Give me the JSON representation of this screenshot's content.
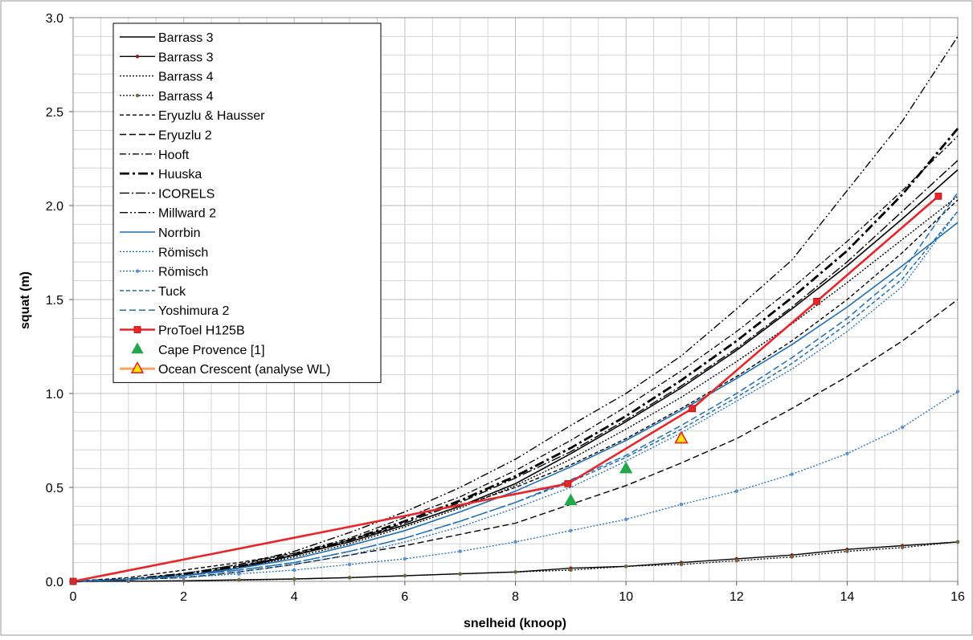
{
  "chart_data": {
    "type": "line",
    "xlabel": "snelheid (knoop)",
    "ylabel": "squat (m)",
    "xlim": [
      0,
      16
    ],
    "ylim": [
      0,
      3.0
    ],
    "x_ticks": [
      "0",
      "2",
      "4",
      "6",
      "8",
      "10",
      "12",
      "14",
      "16"
    ],
    "y_ticks": [
      "0.0",
      "0.5",
      "1.0",
      "1.5",
      "2.0",
      "2.5",
      "3.0"
    ],
    "grid": true,
    "legend_position": "top-left",
    "series": [
      {
        "name": "Barrass 3",
        "color": "#000000",
        "width": 1.6,
        "dash": "",
        "marker": "none",
        "x": [
          0,
          1,
          2,
          3,
          4,
          5,
          6,
          7,
          8,
          9,
          10,
          11,
          12,
          13,
          14,
          15,
          16
        ],
        "y": [
          0,
          0.01,
          0.03,
          0.07,
          0.14,
          0.21,
          0.3,
          0.4,
          0.52,
          0.68,
          0.85,
          1.03,
          1.23,
          1.45,
          1.68,
          1.93,
          2.19
        ]
      },
      {
        "name": "Barrass 3",
        "color": "#000000",
        "width": 1.4,
        "dash": "",
        "marker": "dot",
        "markerColor": "#8b1a1a",
        "x": [
          0,
          1,
          2,
          3,
          4,
          5,
          6,
          7,
          8,
          9,
          10,
          11,
          12,
          13,
          14,
          15,
          16
        ],
        "y": [
          0,
          0.001,
          0.003,
          0.008,
          0.013,
          0.02,
          0.03,
          0.04,
          0.05,
          0.07,
          0.08,
          0.1,
          0.12,
          0.14,
          0.17,
          0.19,
          0.21
        ]
      },
      {
        "name": "Barrass 4",
        "color": "#000000",
        "width": 1.4,
        "dash": "2,2",
        "marker": "none",
        "x": [
          0,
          1,
          2,
          3,
          4,
          5,
          6,
          7,
          8,
          9,
          10,
          11,
          12,
          13,
          14,
          15,
          16
        ],
        "y": [
          0,
          0.01,
          0.03,
          0.07,
          0.13,
          0.2,
          0.29,
          0.39,
          0.51,
          0.65,
          0.81,
          0.98,
          1.17,
          1.37,
          1.59,
          1.82,
          2.05
        ]
      },
      {
        "name": "Barrass 4",
        "color": "#000000",
        "width": 1.3,
        "dash": "2,2",
        "marker": "dot",
        "markerColor": "#6b6b3a",
        "x": [
          0,
          1,
          2,
          3,
          4,
          5,
          6,
          7,
          8,
          9,
          10,
          11,
          12,
          13,
          14,
          15,
          16
        ],
        "y": [
          0,
          0.001,
          0.003,
          0.007,
          0.012,
          0.02,
          0.03,
          0.04,
          0.05,
          0.06,
          0.08,
          0.09,
          0.11,
          0.13,
          0.16,
          0.18,
          0.21
        ]
      },
      {
        "name": "Eryuzlu & Hausser",
        "color": "#000000",
        "width": 1.4,
        "dash": "5,3",
        "marker": "none",
        "x": [
          0,
          1,
          2,
          3,
          4,
          5,
          6,
          7,
          8,
          9,
          10,
          11,
          12,
          13,
          14,
          15,
          16
        ],
        "y": [
          0,
          0.02,
          0.06,
          0.1,
          0.15,
          0.22,
          0.3,
          0.4,
          0.5,
          0.62,
          0.76,
          0.92,
          1.09,
          1.28,
          1.5,
          1.75,
          2.03
        ]
      },
      {
        "name": "Eryuzlu 2",
        "color": "#000000",
        "width": 1.4,
        "dash": "8,4",
        "marker": "none",
        "x": [
          0,
          1,
          2,
          3,
          4,
          5,
          6,
          7,
          8,
          9,
          10,
          11,
          12,
          13,
          14,
          15,
          16
        ],
        "y": [
          0,
          0.01,
          0.02,
          0.05,
          0.09,
          0.14,
          0.19,
          0.25,
          0.31,
          0.41,
          0.51,
          0.63,
          0.76,
          0.92,
          1.09,
          1.28,
          1.5
        ]
      },
      {
        "name": "Hooft",
        "color": "#000000",
        "width": 1.3,
        "dash": "8,3,2,3",
        "marker": "none",
        "x": [
          0,
          1,
          2,
          3,
          4,
          5,
          6,
          7,
          8,
          9,
          10,
          11,
          12,
          13,
          14,
          15,
          16
        ],
        "y": [
          0,
          0.01,
          0.04,
          0.09,
          0.15,
          0.23,
          0.34,
          0.45,
          0.59,
          0.75,
          0.93,
          1.12,
          1.33,
          1.56,
          1.81,
          2.08,
          2.37
        ]
      },
      {
        "name": "Huuska",
        "color": "#000000",
        "width": 2.8,
        "dash": "12,4,3,4",
        "marker": "none",
        "x": [
          0,
          1,
          2,
          3,
          4,
          5,
          6,
          7,
          8,
          9,
          10,
          11,
          12,
          13,
          14,
          15,
          16
        ],
        "y": [
          0,
          0.01,
          0.04,
          0.08,
          0.14,
          0.22,
          0.32,
          0.43,
          0.56,
          0.71,
          0.88,
          1.07,
          1.28,
          1.51,
          1.76,
          2.06,
          2.41
        ]
      },
      {
        "name": "ICORELS",
        "color": "#000000",
        "width": 1.4,
        "dash": "12,3,2,3",
        "marker": "none",
        "x": [
          0,
          1,
          2,
          3,
          4,
          5,
          6,
          7,
          8,
          9,
          10,
          11,
          12,
          13,
          14,
          15,
          16
        ],
        "y": [
          0,
          0.01,
          0.03,
          0.08,
          0.14,
          0.22,
          0.31,
          0.42,
          0.55,
          0.69,
          0.86,
          1.04,
          1.24,
          1.46,
          1.7,
          1.97,
          2.24
        ]
      },
      {
        "name": "Millward 2",
        "color": "#000000",
        "width": 1.4,
        "dash": "10,3,2,3,2,3",
        "marker": "none",
        "x": [
          0,
          1,
          2,
          3,
          4,
          5,
          6,
          7,
          8,
          9,
          10,
          11,
          12,
          13,
          14,
          15,
          16
        ],
        "y": [
          0,
          0.01,
          0.04,
          0.09,
          0.16,
          0.26,
          0.37,
          0.5,
          0.65,
          0.83,
          1.0,
          1.2,
          1.45,
          1.71,
          2.08,
          2.45,
          2.9
        ]
      },
      {
        "name": "Norrbin",
        "color": "#1f6fb5",
        "width": 1.6,
        "dash": "",
        "marker": "none",
        "x": [
          0,
          1,
          2,
          3,
          4,
          5,
          6,
          7,
          8,
          9,
          10,
          11,
          12,
          13,
          14,
          15,
          16
        ],
        "y": [
          0,
          0.01,
          0.03,
          0.07,
          0.12,
          0.19,
          0.27,
          0.37,
          0.48,
          0.61,
          0.75,
          0.91,
          1.08,
          1.26,
          1.46,
          1.68,
          1.91
        ]
      },
      {
        "name": "Römisch",
        "color": "#1f6fb5",
        "width": 1.3,
        "dash": "2,2",
        "marker": "none",
        "x": [
          0,
          1,
          2,
          3,
          4,
          5,
          6,
          7,
          8,
          9,
          10,
          11,
          12,
          13,
          14,
          15,
          16
        ],
        "y": [
          0,
          0.01,
          0.02,
          0.05,
          0.09,
          0.14,
          0.21,
          0.29,
          0.39,
          0.5,
          0.64,
          0.79,
          0.96,
          1.13,
          1.33,
          1.57,
          1.97
        ]
      },
      {
        "name": "Römisch",
        "color": "#1f6fb5",
        "width": 1.3,
        "dash": "2,2",
        "marker": "dot",
        "markerColor": "#5a8fd0",
        "x": [
          0,
          1,
          2,
          3,
          4,
          5,
          6,
          7,
          8,
          9,
          10,
          11,
          12,
          13,
          14,
          15,
          16
        ],
        "y": [
          0,
          0.01,
          0.02,
          0.04,
          0.06,
          0.09,
          0.12,
          0.16,
          0.21,
          0.27,
          0.33,
          0.41,
          0.48,
          0.57,
          0.68,
          0.82,
          1.01
        ]
      },
      {
        "name": "Tuck",
        "color": "#1f6fb5",
        "width": 1.5,
        "dash": "5,3",
        "marker": "none",
        "x": [
          0,
          1,
          2,
          3,
          4,
          5,
          6,
          7,
          8,
          9,
          10,
          11,
          12,
          13,
          14,
          15,
          16
        ],
        "y": [
          0,
          0.01,
          0.03,
          0.06,
          0.1,
          0.16,
          0.23,
          0.32,
          0.42,
          0.53,
          0.66,
          0.81,
          0.98,
          1.16,
          1.37,
          1.61,
          1.97
        ]
      },
      {
        "name": "Yoshimura 2",
        "color": "#1f6fb5",
        "width": 1.5,
        "dash": "8,4",
        "marker": "none",
        "x": [
          0,
          1,
          2,
          3,
          4,
          5,
          6,
          7,
          8,
          9,
          10,
          11,
          12,
          13,
          14,
          15,
          16
        ],
        "y": [
          0,
          0.01,
          0.03,
          0.06,
          0.1,
          0.16,
          0.23,
          0.32,
          0.42,
          0.54,
          0.67,
          0.83,
          1.0,
          1.19,
          1.4,
          1.65,
          2.07
        ]
      },
      {
        "name": "ProToel H125B",
        "color": "#e8262a",
        "width": 2.6,
        "dash": "",
        "marker": "square",
        "markerColor": "#e8262a",
        "x": [
          0,
          8.95,
          11.2,
          13.45,
          15.65
        ],
        "y": [
          0,
          0.52,
          0.92,
          1.49,
          2.05
        ]
      }
    ],
    "scatter": [
      {
        "name": "Cape Provence [1]",
        "color": "#22a84a",
        "stroke": "#22a84a",
        "marker": "triangle",
        "x": [
          9,
          10
        ],
        "y": [
          0.43,
          0.6
        ]
      },
      {
        "name": "Ocean Crescent (analyse WL)",
        "color": "#ffe600",
        "stroke": "#e8262a",
        "marker": "triangle",
        "legendLine": "#f4a45c",
        "x": [
          11
        ],
        "y": [
          0.76
        ]
      }
    ]
  }
}
